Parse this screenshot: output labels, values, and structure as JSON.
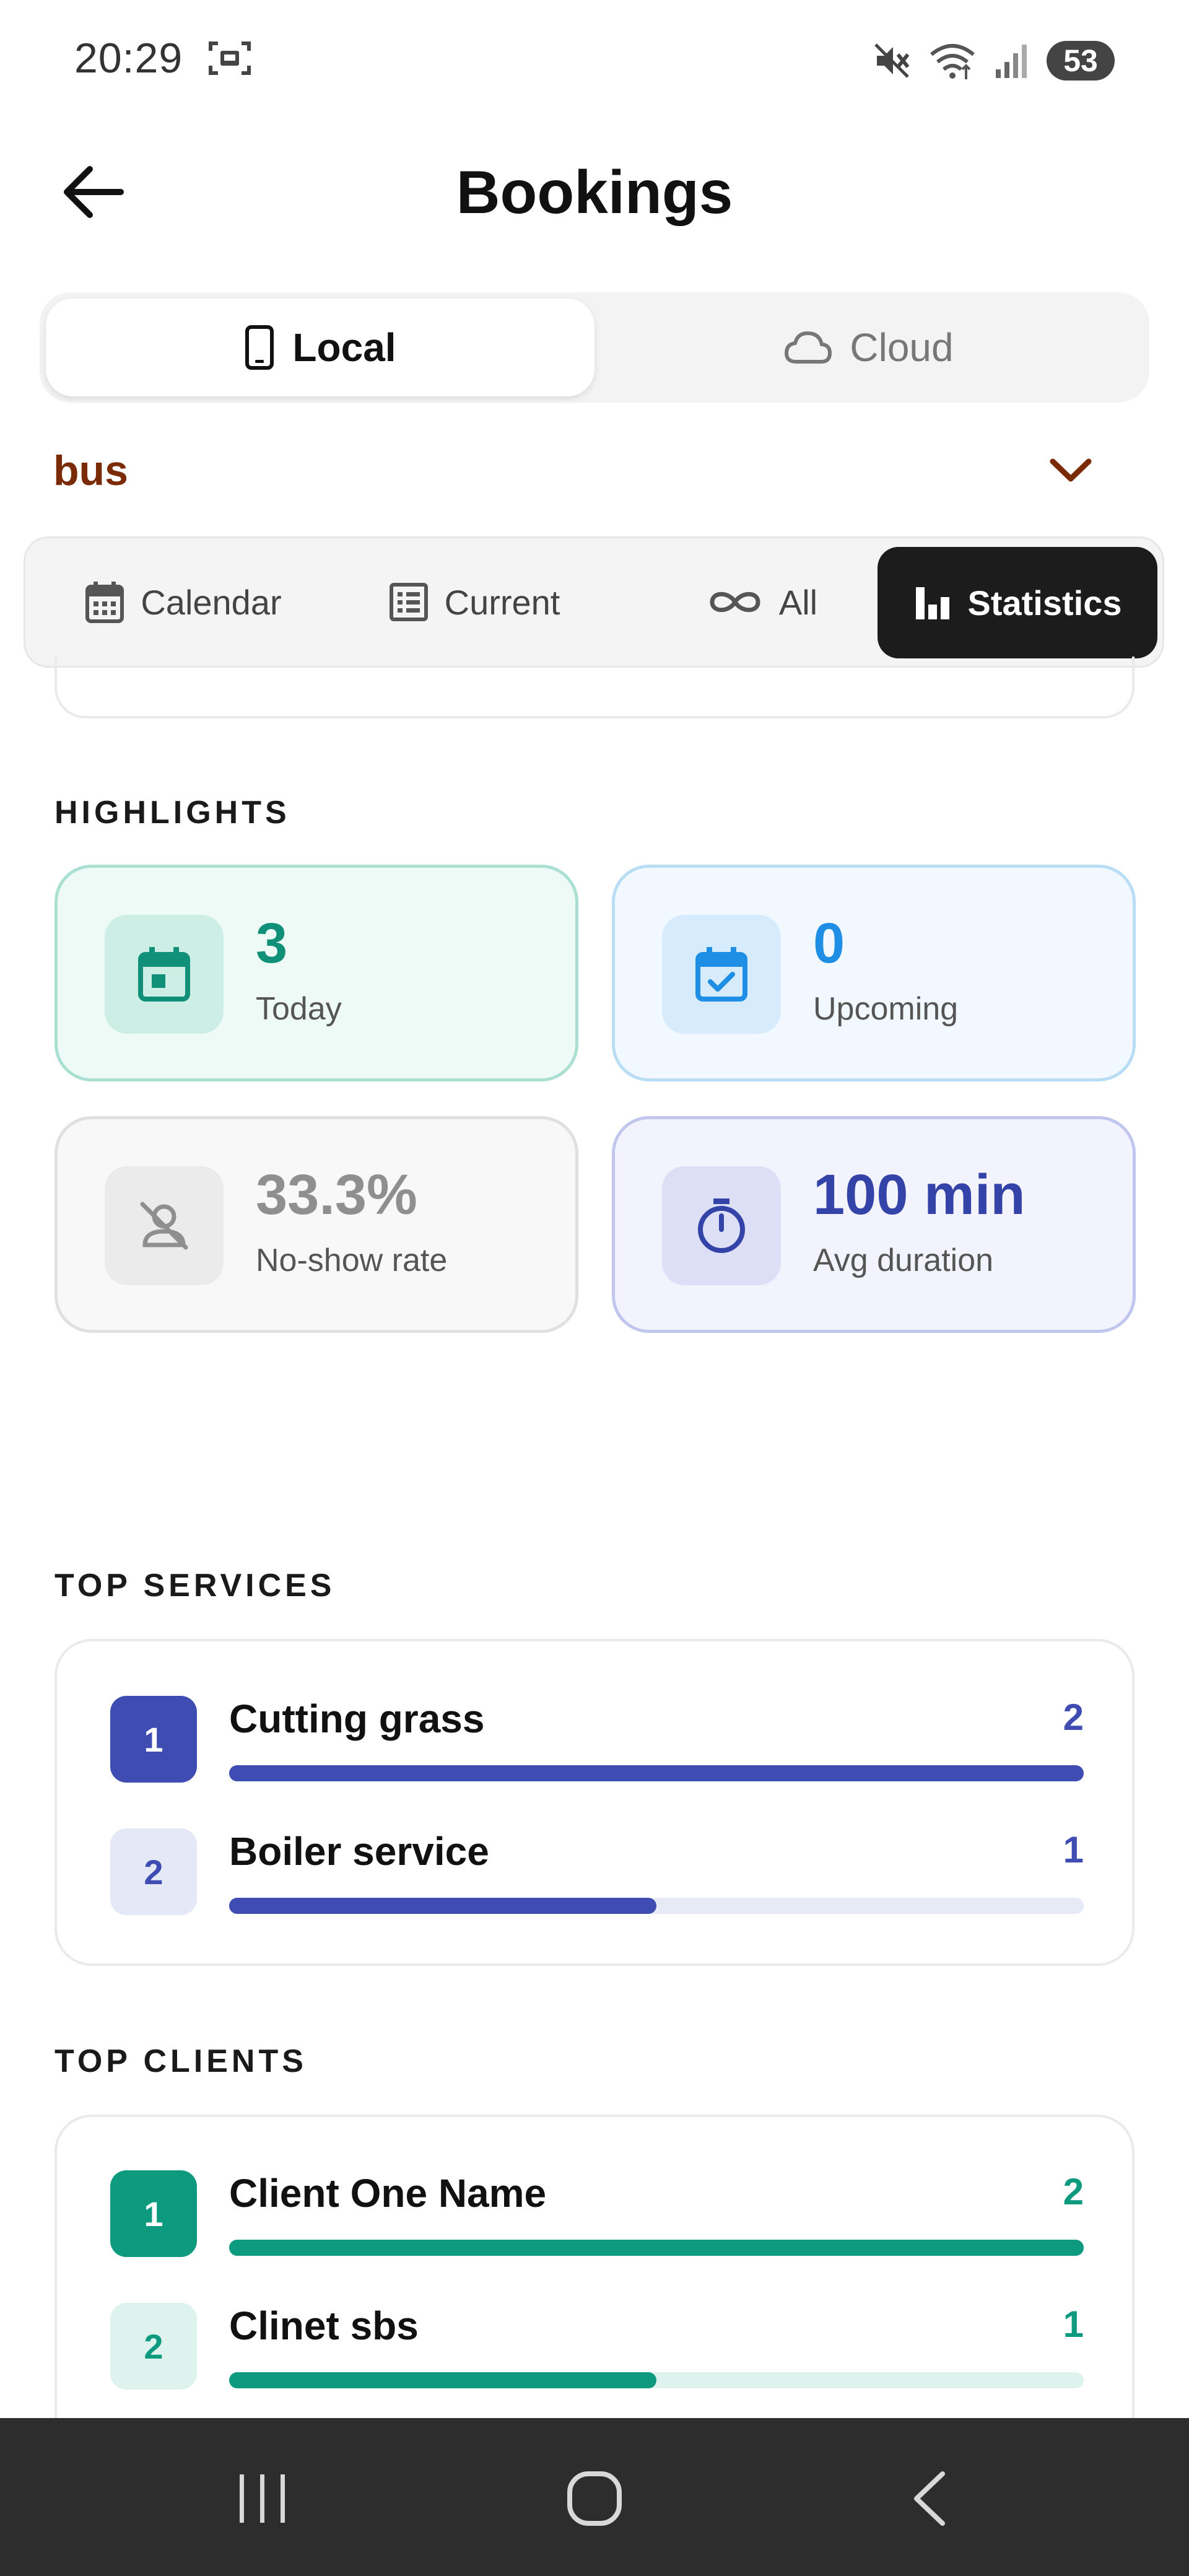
{
  "status_bar": {
    "time": "20:29",
    "battery": "53",
    "icons": [
      "screenshot-icon",
      "mute-icon",
      "wifi-icon",
      "signal-icon"
    ]
  },
  "app_bar": {
    "title": "Bookings",
    "back_icon": "arrow-left-icon"
  },
  "source_toggle": {
    "local_label": "Local",
    "cloud_label": "Cloud",
    "selected": "Local"
  },
  "business_dropdown": {
    "value": "bus"
  },
  "view_tabs": {
    "items": [
      {
        "label": "Calendar",
        "icon": "calendar-icon"
      },
      {
        "label": "Current",
        "icon": "list-icon"
      },
      {
        "label": "All",
        "icon": "infinity-icon"
      },
      {
        "label": "Statistics",
        "icon": "bar-chart-icon"
      }
    ],
    "selected": "Statistics"
  },
  "highlights": {
    "title": "HIGHLIGHTS",
    "cards": [
      {
        "value": "3",
        "label": "Today",
        "icon": "calendar-today-icon",
        "color": "#109078"
      },
      {
        "value": "0",
        "label": "Upcoming",
        "icon": "calendar-check-icon",
        "color": "#1f8fe6"
      },
      {
        "value": "33.3%",
        "label": "No-show rate",
        "icon": "person-off-icon",
        "color": "#8f8f8f"
      },
      {
        "value": "100 min",
        "label": "Avg duration",
        "icon": "timer-icon",
        "color": "#3443a8"
      }
    ]
  },
  "top_services": {
    "title": "TOP SERVICES",
    "items": [
      {
        "rank": "1",
        "name": "Cutting grass",
        "count": "2",
        "share": 1.0
      },
      {
        "rank": "2",
        "name": "Boiler service",
        "count": "1",
        "share": 0.5
      }
    ]
  },
  "top_clients": {
    "title": "TOP CLIENTS",
    "items": [
      {
        "rank": "1",
        "name": "Client One Name",
        "count": "2",
        "share": 1.0
      },
      {
        "rank": "2",
        "name": "Clinet sbs",
        "count": "1",
        "share": 0.5
      }
    ]
  },
  "nav_bar": {
    "buttons": [
      "recents-icon",
      "home-icon",
      "back-icon"
    ]
  }
}
